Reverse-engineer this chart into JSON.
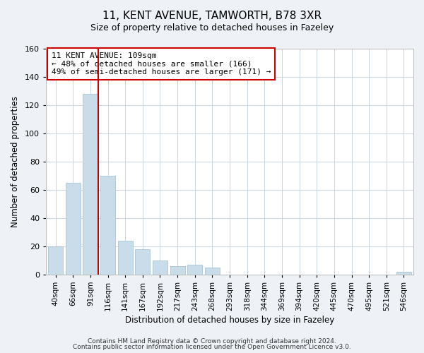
{
  "title": "11, KENT AVENUE, TAMWORTH, B78 3XR",
  "subtitle": "Size of property relative to detached houses in Fazeley",
  "xlabel": "Distribution of detached houses by size in Fazeley",
  "ylabel": "Number of detached properties",
  "bar_labels": [
    "40sqm",
    "66sqm",
    "91sqm",
    "116sqm",
    "141sqm",
    "167sqm",
    "192sqm",
    "217sqm",
    "243sqm",
    "268sqm",
    "293sqm",
    "318sqm",
    "344sqm",
    "369sqm",
    "394sqm",
    "420sqm",
    "445sqm",
    "470sqm",
    "495sqm",
    "521sqm",
    "546sqm"
  ],
  "bar_values": [
    20,
    65,
    128,
    70,
    24,
    18,
    10,
    6,
    7,
    5,
    0,
    0,
    0,
    0,
    0,
    0,
    0,
    0,
    0,
    0,
    2
  ],
  "bar_color": "#c9dcea",
  "bar_edge_color": "#a8c4d8",
  "ylim": [
    0,
    160
  ],
  "yticks": [
    0,
    20,
    40,
    60,
    80,
    100,
    120,
    140,
    160
  ],
  "vline_x_index": 2.43,
  "vline_color": "#cc0000",
  "annotation_title": "11 KENT AVENUE: 109sqm",
  "annotation_line1": "← 48% of detached houses are smaller (166)",
  "annotation_line2": "49% of semi-detached houses are larger (171) →",
  "annotation_box_color": "#ffffff",
  "annotation_box_edge": "#cc0000",
  "footer1": "Contains HM Land Registry data © Crown copyright and database right 2024.",
  "footer2": "Contains public sector information licensed under the Open Government Licence v3.0.",
  "bg_color": "#eef2f7",
  "plot_bg_color": "#ffffff",
  "grid_color": "#c8d4e0",
  "title_fontsize": 11,
  "subtitle_fontsize": 9,
  "axis_label_fontsize": 8.5,
  "tick_fontsize": 8,
  "xtick_fontsize": 7.5,
  "annotation_fontsize": 8,
  "footer_fontsize": 6.5
}
